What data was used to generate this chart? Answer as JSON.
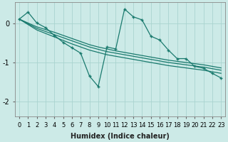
{
  "xlabel": "Humidex (Indice chaleur)",
  "bg_color": "#cceae7",
  "grid_color": "#aad4d0",
  "line_color": "#1a7a6e",
  "x_values": [
    0,
    1,
    2,
    3,
    4,
    5,
    6,
    7,
    8,
    9,
    10,
    11,
    12,
    13,
    14,
    15,
    16,
    17,
    18,
    19,
    20,
    21,
    22,
    23
  ],
  "y_main": [
    0.12,
    0.3,
    0.02,
    -0.1,
    -0.3,
    -0.48,
    -0.62,
    -0.76,
    -1.35,
    -1.62,
    -0.6,
    -0.65,
    0.38,
    0.18,
    0.1,
    -0.32,
    -0.42,
    -0.68,
    -0.9,
    -0.9,
    -1.1,
    -1.15,
    -1.28,
    -1.4
  ],
  "y_band_top": [
    0.12,
    0.02,
    -0.08,
    -0.15,
    -0.22,
    -0.3,
    -0.38,
    -0.46,
    -0.54,
    -0.6,
    -0.65,
    -0.7,
    -0.74,
    -0.78,
    -0.82,
    -0.86,
    -0.9,
    -0.94,
    -0.97,
    -1.0,
    -1.03,
    -1.06,
    -1.1,
    -1.14
  ],
  "y_band_mid": [
    0.12,
    0.0,
    -0.12,
    -0.2,
    -0.28,
    -0.36,
    -0.44,
    -0.52,
    -0.6,
    -0.66,
    -0.72,
    -0.76,
    -0.8,
    -0.84,
    -0.88,
    -0.92,
    -0.96,
    -1.0,
    -1.03,
    -1.06,
    -1.09,
    -1.12,
    -1.16,
    -1.2
  ],
  "y_band_bot": [
    0.12,
    -0.02,
    -0.16,
    -0.25,
    -0.34,
    -0.43,
    -0.52,
    -0.6,
    -0.68,
    -0.74,
    -0.8,
    -0.84,
    -0.88,
    -0.92,
    -0.96,
    -1.0,
    -1.04,
    -1.08,
    -1.11,
    -1.14,
    -1.17,
    -1.2,
    -1.24,
    -1.28
  ],
  "ylim": [
    -2.4,
    0.55
  ],
  "yticks": [
    0,
    -1,
    -2
  ],
  "xlim": [
    -0.5,
    23.5
  ],
  "xticks": [
    0,
    1,
    2,
    3,
    4,
    5,
    6,
    7,
    8,
    9,
    10,
    11,
    12,
    13,
    14,
    15,
    16,
    17,
    18,
    19,
    20,
    21,
    22,
    23
  ],
  "tick_fontsize": 6,
  "xlabel_fontsize": 7
}
